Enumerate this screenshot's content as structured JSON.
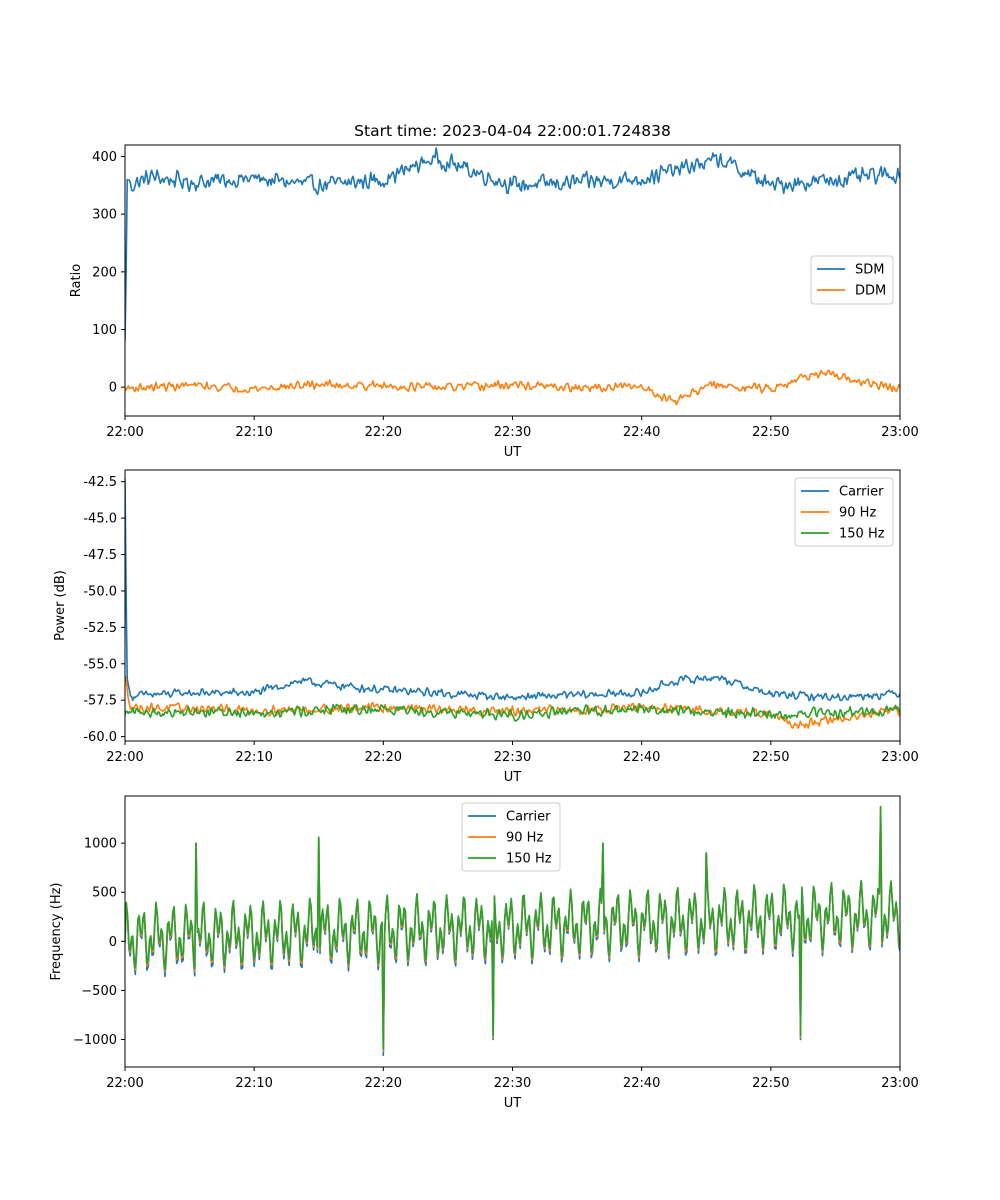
{
  "chart_data": [
    {
      "type": "line",
      "title": "Start time: 2023-04-04 22:00:01.724838",
      "xlabel": "UT",
      "ylabel": "Ratio",
      "xlim": [
        "22:00",
        "23:00"
      ],
      "xticks": [
        "22:00",
        "22:10",
        "22:20",
        "22:30",
        "22:40",
        "22:50",
        "23:00"
      ],
      "ylim": [
        -50,
        420
      ],
      "yticks": [
        "0",
        "100",
        "200",
        "300",
        "400"
      ],
      "legend_position": "center-right",
      "series": [
        {
          "name": "SDM",
          "color": "#1f77b4",
          "x_minutes": [
            0,
            0.2,
            0.5,
            2,
            5,
            10,
            15,
            20,
            24,
            30,
            35,
            40,
            46,
            50,
            55,
            60
          ],
          "values": [
            80,
            360,
            350,
            365,
            355,
            362,
            350,
            360,
            398,
            350,
            355,
            362,
            395,
            350,
            360,
            370
          ],
          "noise": 18
        },
        {
          "name": "DDM",
          "color": "#ff7f0e",
          "x_minutes": [
            0,
            5,
            10,
            15,
            20,
            25,
            30,
            35,
            40,
            42.5,
            45,
            50,
            53.5,
            60
          ],
          "values": [
            -2,
            3,
            -3,
            5,
            2,
            -1,
            4,
            -2,
            1,
            -25,
            3,
            -2,
            25,
            -4
          ],
          "noise": 9
        }
      ]
    },
    {
      "type": "line",
      "title": "",
      "xlabel": "UT",
      "ylabel": "Power (dB)",
      "xlim": [
        "22:00",
        "23:00"
      ],
      "xticks": [
        "22:00",
        "22:10",
        "22:20",
        "22:30",
        "22:40",
        "22:50",
        "23:00"
      ],
      "ylim": [
        -60.3,
        -41.7
      ],
      "yticks": [
        "-42.5",
        "-45.0",
        "-47.5",
        "-50.0",
        "-52.5",
        "-55.0",
        "-57.5",
        "-60.0"
      ],
      "legend_position": "upper-right",
      "series": [
        {
          "name": "Carrier",
          "color": "#1f77b4",
          "x_minutes": [
            0,
            0.15,
            0.4,
            5,
            10,
            13.5,
            20,
            30,
            40,
            42.5,
            45.8,
            50,
            55,
            60
          ],
          "values": [
            -42.3,
            -56.0,
            -57.2,
            -57.0,
            -57.0,
            -56.2,
            -56.8,
            -57.3,
            -57.0,
            -56.2,
            -55.9,
            -57.1,
            -57.3,
            -57.0
          ],
          "noise": 0.35
        },
        {
          "name": "90 Hz",
          "color": "#ff7f0e",
          "x_minutes": [
            0,
            0.2,
            0.5,
            10,
            20,
            30,
            40,
            50,
            52,
            60
          ],
          "values": [
            -55.8,
            -57.0,
            -58.0,
            -58.2,
            -58.0,
            -58.3,
            -58.0,
            -58.4,
            -59.2,
            -58.2
          ],
          "noise": 0.4
        },
        {
          "name": "150 Hz",
          "color": "#2ca02c",
          "x_minutes": [
            0,
            0.3,
            10,
            20,
            30,
            40,
            50,
            60
          ],
          "values": [
            -58.5,
            -58.3,
            -58.3,
            -58.1,
            -58.5,
            -58.1,
            -58.5,
            -58.2
          ],
          "noise": 0.45
        }
      ]
    },
    {
      "type": "line",
      "title": "",
      "xlabel": "UT",
      "ylabel": "Frequency (Hz)",
      "xlim": [
        "22:00",
        "23:00"
      ],
      "xticks": [
        "22:00",
        "22:10",
        "22:20",
        "22:30",
        "22:40",
        "22:50",
        "23:00"
      ],
      "ylim": [
        -1280,
        1480
      ],
      "yticks": [
        "−1000",
        "−500",
        "0",
        "500",
        "1000"
      ],
      "legend_position": "upper-center",
      "series": [
        {
          "name": "Carrier",
          "color": "#1f77b4",
          "x_minutes": [
            0,
            5.5,
            15,
            20,
            28.5,
            37,
            45,
            52.3,
            58.5,
            60
          ],
          "values": [
            0,
            1000,
            1060,
            -1160,
            -1000,
            1000,
            900,
            -1000,
            1370,
            300
          ],
          "amplitude": 420,
          "offset": -40
        },
        {
          "name": "90 Hz",
          "color": "#ff7f0e",
          "x_minutes": [
            0,
            5.5,
            15,
            20,
            28.5,
            37,
            45,
            52.3,
            58.5,
            60
          ],
          "values": [
            0,
            1000,
            1060,
            -1120,
            -980,
            1000,
            900,
            -980,
            1370,
            320
          ],
          "amplitude": 400,
          "offset": -10
        },
        {
          "name": "150 Hz",
          "color": "#2ca02c",
          "x_minutes": [
            0,
            5.5,
            15,
            20,
            28.5,
            37,
            45,
            52.3,
            58.5,
            60
          ],
          "values": [
            0,
            1000,
            1060,
            -1100,
            -960,
            1000,
            900,
            -960,
            1370,
            340
          ],
          "amplitude": 390,
          "offset": 10
        }
      ]
    }
  ]
}
